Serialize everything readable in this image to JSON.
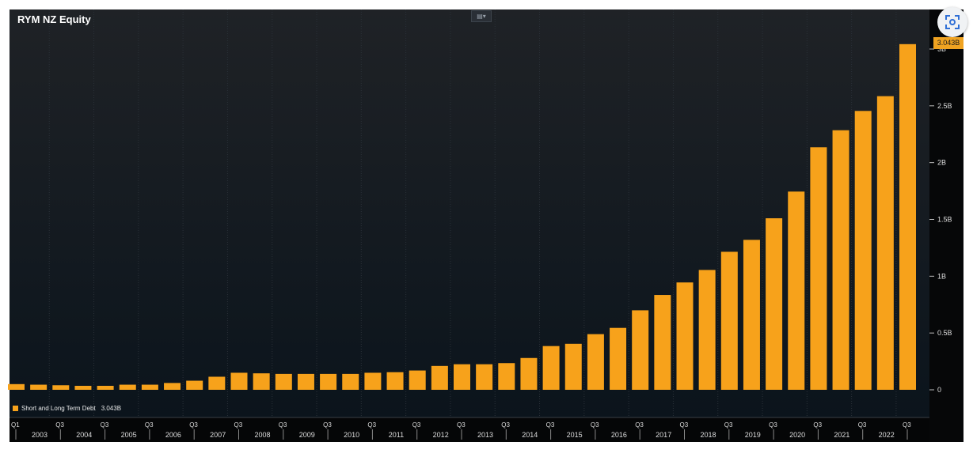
{
  "title": "RYM NZ Equity",
  "legend": {
    "label": "Short and Long Term Debt",
    "value": "3.043B",
    "color": "#f7a21b"
  },
  "last_value_tag": "3.043B",
  "colors": {
    "background_top": "#1f2226",
    "background_bottom": "#0b141c",
    "bar": "#f7a21b",
    "axis_text": "#dcdcdc"
  },
  "chart_data": {
    "type": "bar",
    "title": "RYM NZ Equity",
    "series": [
      {
        "name": "Short and Long Term Debt",
        "values": [
          0.05,
          0.045,
          0.04,
          0.035,
          0.035,
          0.045,
          0.045,
          0.06,
          0.08,
          0.115,
          0.15,
          0.145,
          0.14,
          0.14,
          0.14,
          0.14,
          0.15,
          0.155,
          0.17,
          0.21,
          0.225,
          0.225,
          0.235,
          0.28,
          0.385,
          0.405,
          0.49,
          0.545,
          0.7,
          0.835,
          0.945,
          1.055,
          1.215,
          1.32,
          1.51,
          1.745,
          2.135,
          2.285,
          2.455,
          2.585,
          3.043
        ]
      }
    ],
    "x_quarter_labels": [
      "Q1",
      "Q3",
      "Q3",
      "Q3",
      "Q3",
      "Q3",
      "Q3",
      "Q3",
      "Q3",
      "Q3",
      "Q3",
      "Q3",
      "Q3",
      "Q3",
      "Q3",
      "Q3",
      "Q3",
      "Q3",
      "Q3",
      "Q3",
      "Q3"
    ],
    "x_year_labels": [
      "2003",
      "2004",
      "2005",
      "2006",
      "2007",
      "2008",
      "2009",
      "2010",
      "2011",
      "2012",
      "2013",
      "2014",
      "2015",
      "2016",
      "2017",
      "2018",
      "2019",
      "2020",
      "2021",
      "2022"
    ],
    "y_ticks": [
      {
        "value": 0,
        "label": "0"
      },
      {
        "value": 0.5,
        "label": "0.5B"
      },
      {
        "value": 1,
        "label": "1B"
      },
      {
        "value": 1.5,
        "label": "1.5B"
      },
      {
        "value": 2,
        "label": "2B"
      },
      {
        "value": 2.5,
        "label": "2.5B"
      },
      {
        "value": 3,
        "label": "3B"
      }
    ],
    "ylim": [
      0,
      3.0
    ],
    "y_axis_side": "right",
    "grid": true,
    "legend_position": "bottom-left"
  }
}
